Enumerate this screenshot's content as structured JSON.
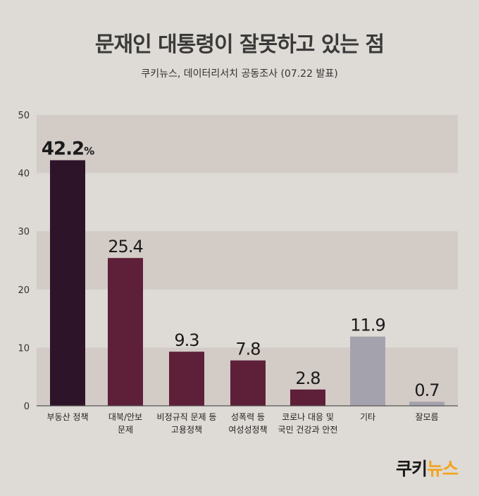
{
  "chart_data": {
    "type": "bar",
    "title": "문재인 대통령이 잘못하고 있는 점",
    "subtitle": "쿠키뉴스, 데이터리서치 공동조사 (07.22 발표)",
    "categories": [
      [
        "부동산 정책"
      ],
      [
        "대북/안보",
        "문제"
      ],
      [
        "비정규직 문제 등",
        "고용정책"
      ],
      [
        "성폭력 등",
        "여성성정책"
      ],
      [
        "코로나 대응 및",
        "국민 건강과 안전"
      ],
      [
        "기타"
      ],
      [
        "잘모름"
      ]
    ],
    "values": [
      42.2,
      25.4,
      9.3,
      7.8,
      2.8,
      11.9,
      0.7
    ],
    "value_labels": [
      "42.2%",
      "25.4",
      "9.3",
      "7.8",
      "2.8",
      "11.9",
      "0.7"
    ],
    "bar_colors": [
      "#2e1429",
      "#5e1f38",
      "#5e1f38",
      "#5e1f38",
      "#5e1f38",
      "#a4a3ad",
      "#a4a3ad"
    ],
    "ylim": [
      0,
      50
    ],
    "yticks": [
      0,
      10,
      20,
      30,
      40,
      50
    ],
    "grid": true,
    "band_color": "#d3cbc6"
  },
  "logo": {
    "main": "쿠키",
    "accent": "뉴스"
  }
}
